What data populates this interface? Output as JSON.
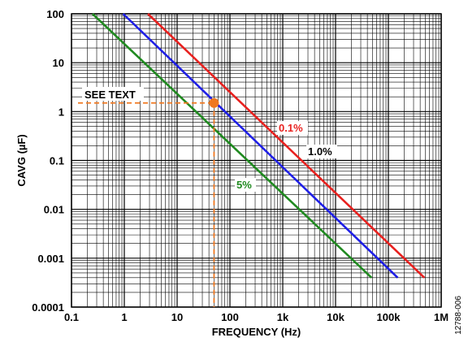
{
  "chart_data": {
    "type": "line",
    "title": "",
    "xlabel": "FREQUENCY (Hz)",
    "ylabel": "CAVG (µF)",
    "x_scale": "log",
    "y_scale": "log",
    "xlim": [
      0.1,
      1000000
    ],
    "ylim": [
      0.0001,
      100
    ],
    "grid": true,
    "x_ticks": [
      {
        "value": 0.1,
        "label": "0.1"
      },
      {
        "value": 1,
        "label": "1"
      },
      {
        "value": 10,
        "label": "10"
      },
      {
        "value": 100,
        "label": "100"
      },
      {
        "value": 1000,
        "label": "1k"
      },
      {
        "value": 10000,
        "label": "10k"
      },
      {
        "value": 100000,
        "label": "100k"
      },
      {
        "value": 1000000,
        "label": "1M"
      }
    ],
    "y_ticks": [
      {
        "value": 100,
        "label": "100"
      },
      {
        "value": 10,
        "label": "10"
      },
      {
        "value": 1,
        "label": "1"
      },
      {
        "value": 0.1,
        "label": "0.1"
      },
      {
        "value": 0.01,
        "label": "0.01"
      },
      {
        "value": 0.001,
        "label": "0.001"
      },
      {
        "value": 0.0001,
        "label": "0.0001"
      }
    ],
    "series": [
      {
        "name": "0.1%",
        "color": "#e8211f",
        "x": [
          2.8,
          480000
        ],
        "y": [
          100,
          0.0004
        ]
      },
      {
        "name": "1.0%",
        "color": "#1f1fe6",
        "x": [
          0.95,
          150000
        ],
        "y": [
          100,
          0.0004
        ]
      },
      {
        "name": "5%",
        "color": "#208a20",
        "x": [
          0.25,
          48000
        ],
        "y": [
          100,
          0.0004
        ]
      }
    ],
    "annotations": [
      {
        "id": "see-text",
        "text": "SEE TEXT",
        "x": 50,
        "y": 1.5,
        "color": "#f07820"
      },
      {
        "id": "label-0-1",
        "text": "0.1%",
        "color": "#e8211f"
      },
      {
        "id": "label-1-0",
        "text": "1.0%",
        "color": "#000000"
      },
      {
        "id": "label-5",
        "text": "5%",
        "color": "#208a20"
      }
    ]
  },
  "figure_id": "12788-006"
}
